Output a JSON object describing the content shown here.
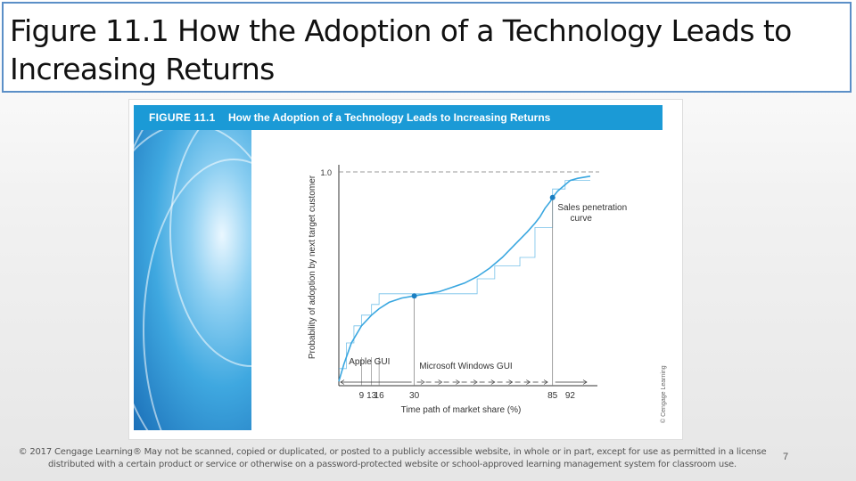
{
  "slide": {
    "title": "Figure 11.1 How the Adoption of a Technology Leads to Increasing Returns",
    "footer": "© 2017 Cengage Learning® May not be scanned, copied or duplicated, or posted to a publicly accessible website, in whole or in part, except for use as permitted in a license distributed with a certain product or service or otherwise on a password-protected website or school-approved learning management system for classroom use.",
    "page_number": "7"
  },
  "figure": {
    "number": "FIGURE 11.1",
    "caption": "How the Adoption of a Technology Leads to Increasing Returns",
    "credit": "© Cengage Learning"
  },
  "colors": {
    "header": "#1b9ad6",
    "curve": "#3aa7e0",
    "accent_border": "#5b8fc7"
  },
  "chart_data": {
    "type": "line",
    "title": "How the Adoption of a Technology Leads to Increasing Returns",
    "xlabel": "Time path of market share (%)",
    "ylabel": "Probability of adoption by next target customer",
    "xlim": [
      0,
      100
    ],
    "ylim": [
      0,
      1.0
    ],
    "x_ticks": [
      9,
      13,
      16,
      30,
      85,
      92
    ],
    "y_ticks": [
      {
        "value": 1.0,
        "label": "1.0"
      }
    ],
    "series": [
      {
        "name": "Sales penetration curve",
        "x": [
          0,
          2,
          5,
          9,
          13,
          16,
          20,
          25,
          30,
          35,
          40,
          45,
          50,
          55,
          60,
          65,
          70,
          75,
          78,
          80,
          82,
          84,
          85,
          87,
          90,
          92,
          95,
          100
        ],
        "y": [
          0.02,
          0.1,
          0.2,
          0.28,
          0.33,
          0.36,
          0.39,
          0.41,
          0.42,
          0.43,
          0.44,
          0.46,
          0.48,
          0.51,
          0.55,
          0.6,
          0.66,
          0.72,
          0.76,
          0.79,
          0.83,
          0.86,
          0.88,
          0.91,
          0.94,
          0.96,
          0.97,
          0.98
        ]
      },
      {
        "name": "Adoption steps",
        "x": [
          0,
          3,
          3,
          6,
          6,
          9,
          9,
          13,
          13,
          16,
          16,
          25,
          25,
          55,
          55,
          62,
          62,
          72,
          72,
          78,
          78,
          85,
          85,
          90,
          90,
          100
        ],
        "y": [
          0.08,
          0.08,
          0.2,
          0.2,
          0.28,
          0.28,
          0.33,
          0.33,
          0.38,
          0.38,
          0.43,
          0.43,
          0.43,
          0.43,
          0.5,
          0.5,
          0.56,
          0.56,
          0.6,
          0.6,
          0.74,
          0.74,
          0.92,
          0.92,
          0.96,
          0.96
        ]
      }
    ],
    "reference_line": {
      "y": 1.0,
      "style": "dashed"
    },
    "marked_points": [
      {
        "x": 30,
        "y": 0.42
      },
      {
        "x": 85,
        "y": 0.88
      }
    ],
    "annotations": [
      {
        "text": "Sales penetration",
        "x": 87,
        "y": 0.82
      },
      {
        "text": "curve",
        "x": 92,
        "y": 0.77
      },
      {
        "text": "Apple GUI",
        "x": 4,
        "y": 0.1
      },
      {
        "text": "Microsoft Windows GUI",
        "x": 32,
        "y": 0.08
      }
    ]
  }
}
